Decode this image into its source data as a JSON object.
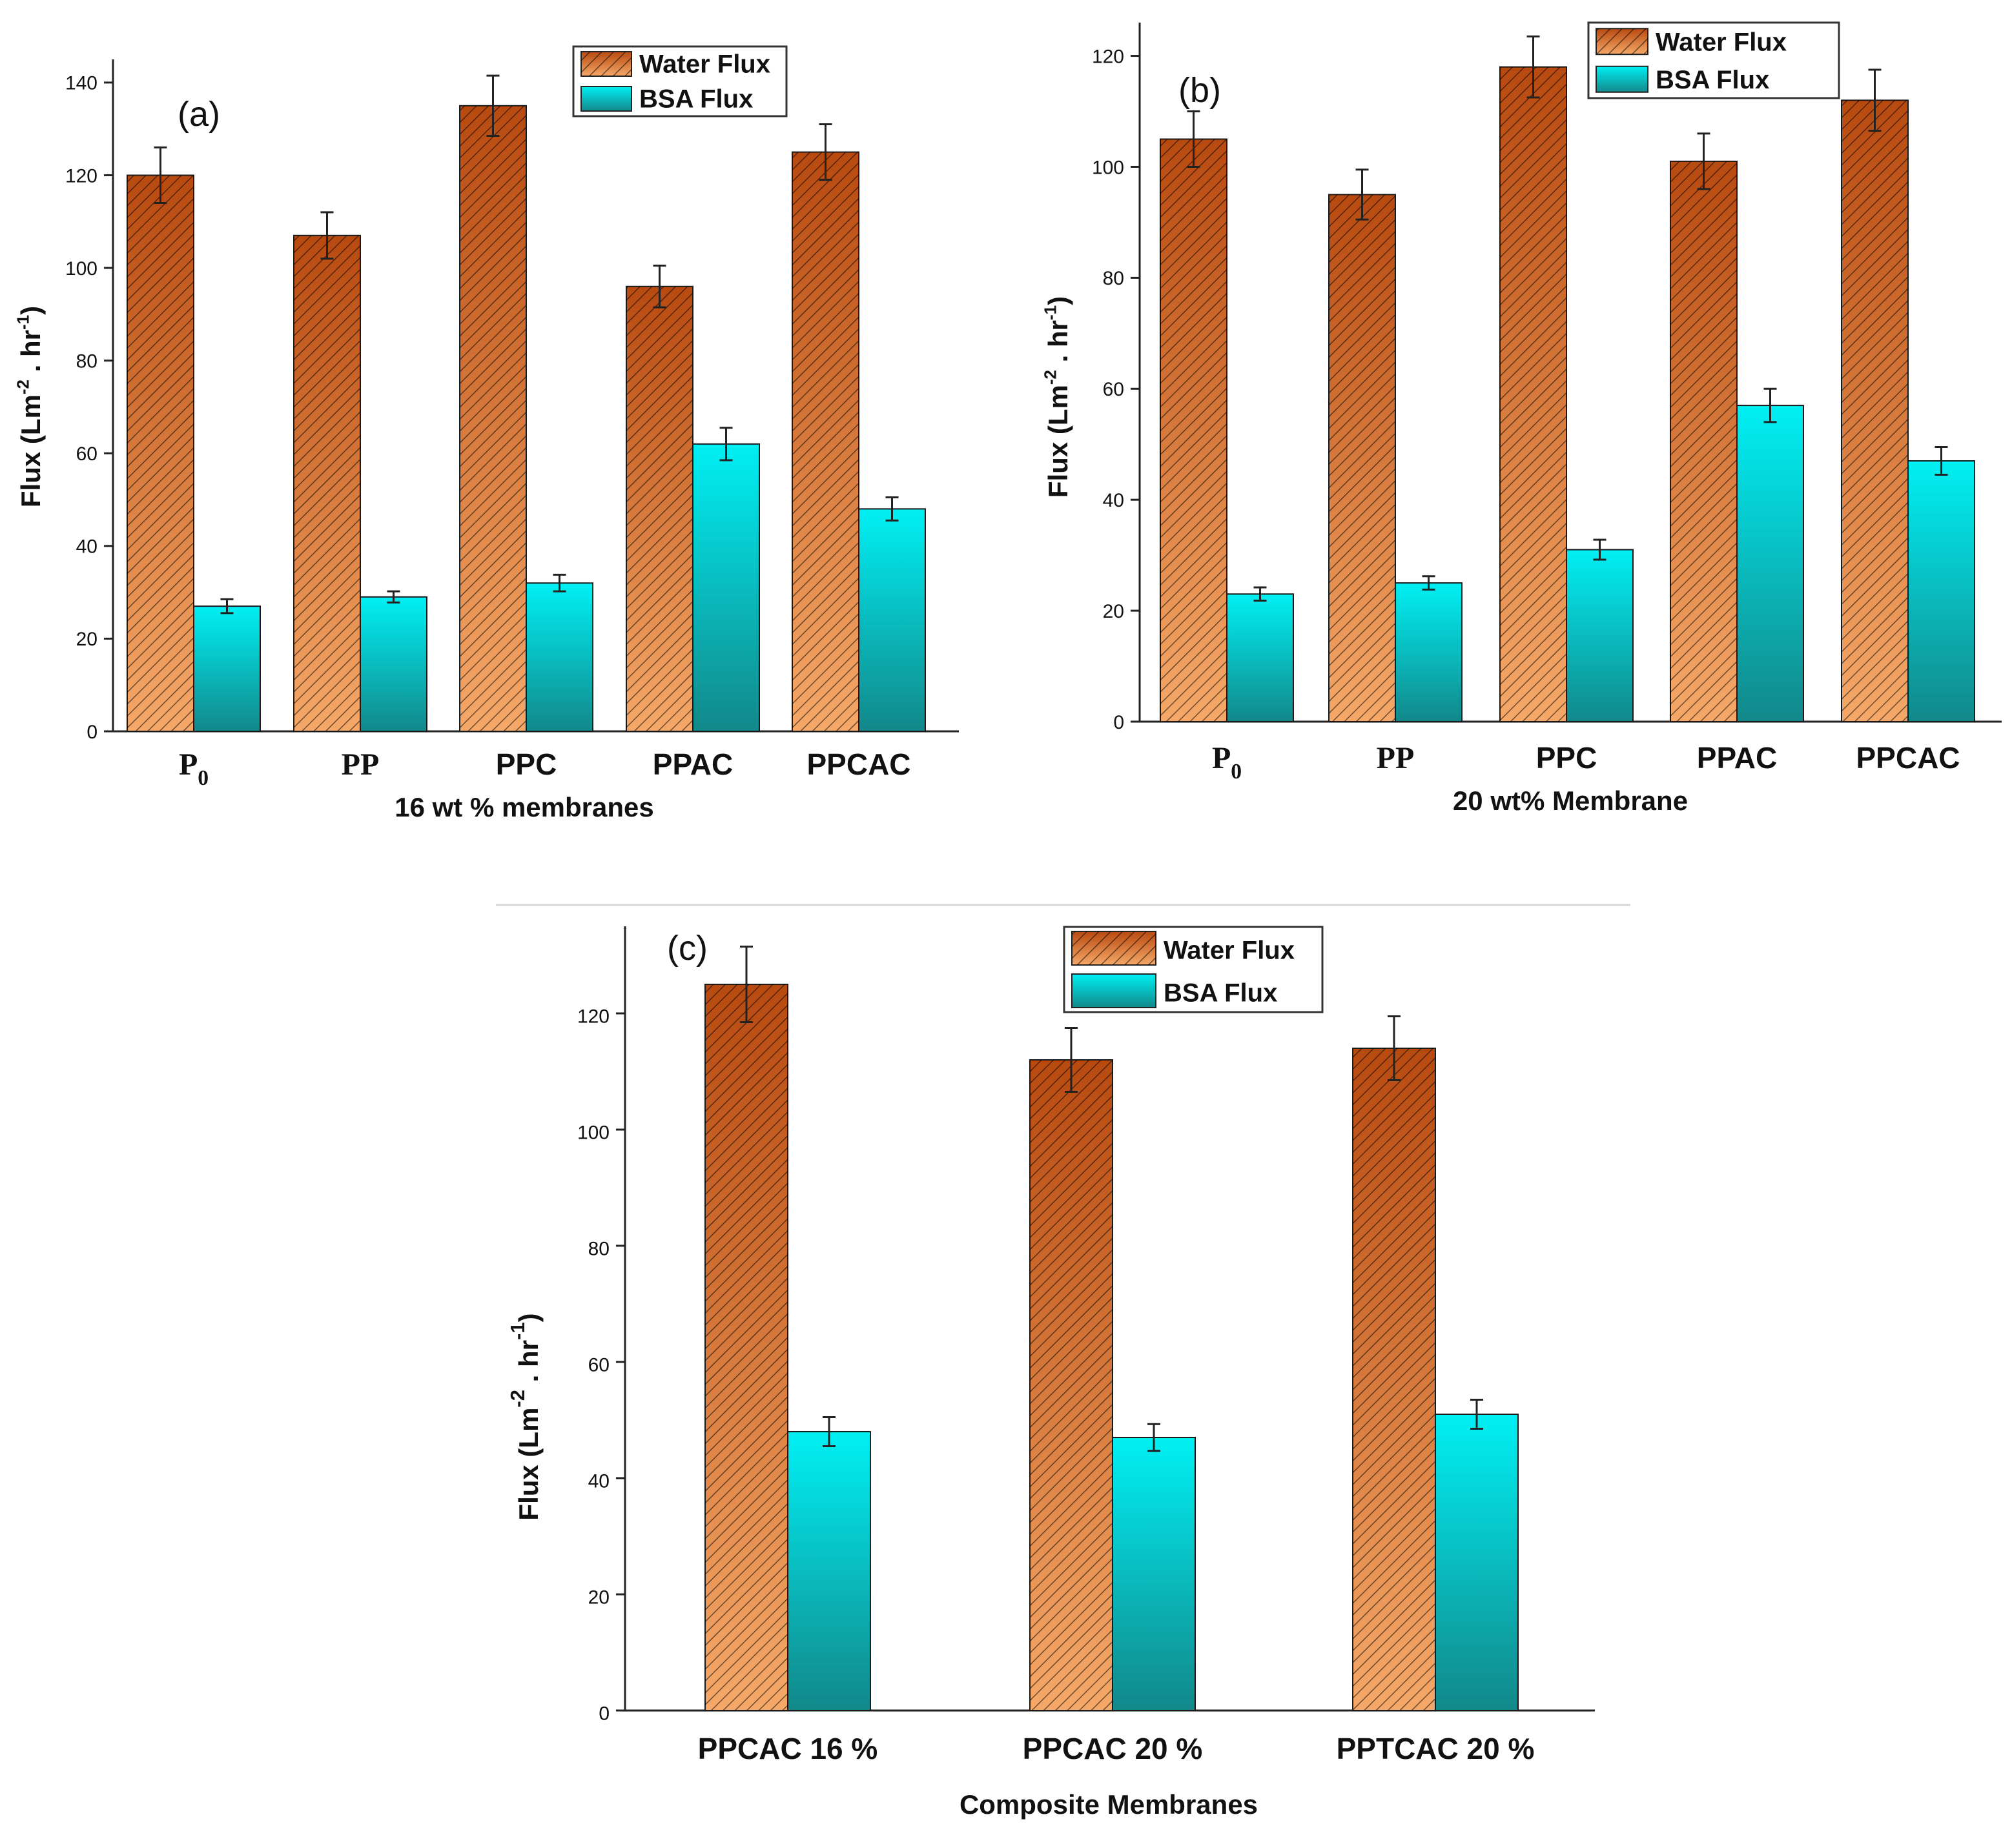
{
  "colors": {
    "water_dark": "#b84a10",
    "water_light": "#f5a868",
    "bsa_top": "#00f0f4",
    "bsa_bottom": "#12888a",
    "axis": "#222222"
  },
  "chart_data": [
    {
      "type": "bar",
      "panel": "(a)",
      "xlabel": "16 wt % membranes",
      "ylabel": "Flux (Lm-2 . hr-1)",
      "ylim": [
        0,
        145
      ],
      "yticks": [
        0,
        20,
        40,
        60,
        80,
        100,
        120,
        140
      ],
      "categories": [
        {
          "base": "P",
          "sub": "0"
        },
        {
          "base": "PP",
          "sub": ""
        },
        {
          "base": "PPC",
          "sub": ""
        },
        {
          "base": "PPAC",
          "sub": ""
        },
        {
          "base": "PPCAC",
          "sub": ""
        }
      ],
      "series": [
        {
          "name": "Water Flux",
          "values": [
            120,
            107,
            135,
            96,
            125
          ],
          "errors": [
            6,
            5,
            6.5,
            4.5,
            6
          ]
        },
        {
          "name": "BSA Flux",
          "values": [
            27,
            29,
            32,
            62,
            48
          ],
          "errors": [
            1.5,
            1.2,
            1.8,
            3.5,
            2.5
          ]
        }
      ],
      "legend": "top-right"
    },
    {
      "type": "bar",
      "panel": "(b)",
      "xlabel": "20 wt% Membrane",
      "ylabel": "Flux (Lm-2 . hr-1)",
      "ylim": [
        0,
        126
      ],
      "yticks": [
        0,
        20,
        40,
        60,
        80,
        100,
        120
      ],
      "categories": [
        {
          "base": "P",
          "sub": "0"
        },
        {
          "base": "PP",
          "sub": ""
        },
        {
          "base": "PPC",
          "sub": ""
        },
        {
          "base": "PPAC",
          "sub": ""
        },
        {
          "base": "PPCAC",
          "sub": ""
        }
      ],
      "series": [
        {
          "name": "Water Flux",
          "values": [
            105,
            95,
            118,
            101,
            112
          ],
          "errors": [
            5,
            4.5,
            5.5,
            5,
            5.5
          ]
        },
        {
          "name": "BSA Flux",
          "values": [
            23,
            25,
            31,
            57,
            47
          ],
          "errors": [
            1.2,
            1.2,
            1.8,
            3,
            2.5
          ]
        }
      ],
      "legend": "top-right"
    },
    {
      "type": "bar",
      "panel": "(c)",
      "xlabel": "Composite Membranes",
      "ylabel": "Flux (Lm-2 . hr-1)",
      "ylim": [
        0,
        135
      ],
      "yticks": [
        0,
        20,
        40,
        60,
        80,
        100,
        120
      ],
      "categories": [
        {
          "base": "PPCAC 16 %",
          "sub": ""
        },
        {
          "base": "PPCAC 20 %",
          "sub": ""
        },
        {
          "base": "PPTCAC 20 %",
          "sub": ""
        }
      ],
      "series": [
        {
          "name": "Water Flux",
          "values": [
            125,
            112,
            114
          ],
          "errors": [
            6.5,
            5.5,
            5.5
          ]
        },
        {
          "name": "BSA Flux",
          "values": [
            48,
            47,
            51
          ],
          "errors": [
            2.5,
            2.3,
            2.5
          ]
        }
      ],
      "legend": "top-right"
    }
  ]
}
